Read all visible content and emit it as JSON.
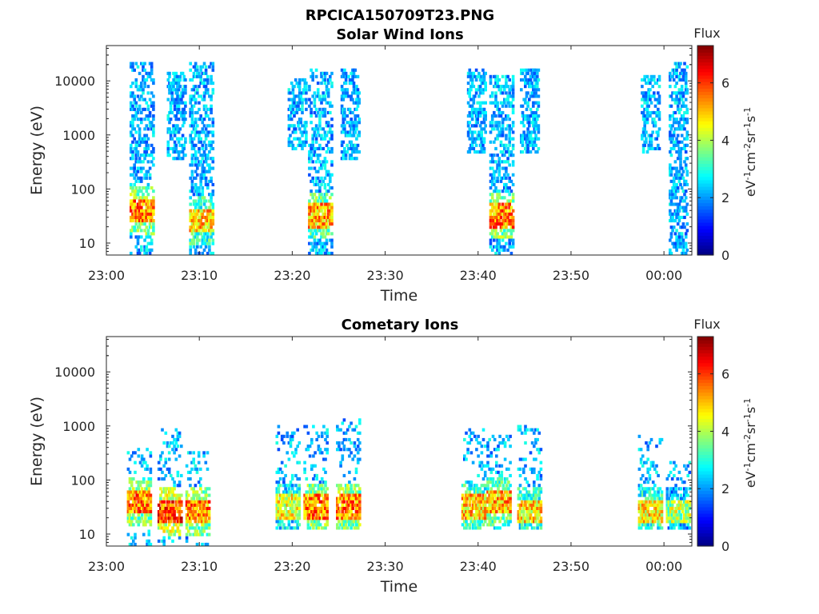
{
  "figure": {
    "title": "RPCICA150709T23.PNG"
  },
  "chart_data": [
    {
      "type": "heatmap",
      "title": "Solar Wind Ions",
      "xlabel": "Time",
      "ylabel": "Energy (eV)",
      "x_ticks": [
        "23:00",
        "23:10",
        "23:20",
        "23:30",
        "23:40",
        "23:50",
        "00:00"
      ],
      "xlim_minutes": [
        0,
        63
      ],
      "y_scale": "log",
      "ylim": [
        6,
        45000
      ],
      "y_ticks": [
        "10",
        "100",
        "1000",
        "10000"
      ],
      "y_tick_values": [
        10,
        100,
        1000,
        10000
      ],
      "colorbar": {
        "label": "Flux",
        "units": "eV-1cm-2sr-1s-1",
        "min": 0,
        "max": 7.3,
        "ticks": [
          "0",
          "2",
          "4",
          "6"
        ],
        "tick_values": [
          0,
          2,
          4,
          6
        ],
        "colormap": "jet"
      },
      "bursts": [
        {
          "t": 3.8,
          "emin": 6,
          "emax": 22000,
          "core_e": 35,
          "peak": 6.5
        },
        {
          "t": 7.5,
          "emin": 300,
          "emax": 14000,
          "core_e": 0,
          "peak": 2.0
        },
        {
          "t": 10.2,
          "emin": 6,
          "emax": 20000,
          "core_e": 25,
          "peak": 6.0
        },
        {
          "t": 20.5,
          "emin": 500,
          "emax": 11000,
          "core_e": 0,
          "peak": 2.0
        },
        {
          "t": 23.0,
          "emin": 6,
          "emax": 15000,
          "core_e": 30,
          "peak": 6.2
        },
        {
          "t": 26.2,
          "emin": 300,
          "emax": 15000,
          "core_e": 0,
          "peak": 2.0
        },
        {
          "t": 39.8,
          "emin": 400,
          "emax": 16000,
          "core_e": 0,
          "peak": 2.0
        },
        {
          "t": 42.5,
          "emin": 6,
          "emax": 12000,
          "core_e": 30,
          "peak": 6.5
        },
        {
          "t": 45.5,
          "emin": 400,
          "emax": 15000,
          "core_e": 0,
          "peak": 2.0
        },
        {
          "t": 58.5,
          "emin": 400,
          "emax": 12000,
          "core_e": 0,
          "peak": 2.0
        },
        {
          "t": 61.5,
          "emin": 6,
          "emax": 20000,
          "core_e": 0,
          "peak": 3.0
        }
      ]
    },
    {
      "type": "heatmap",
      "title": "Cometary Ions",
      "xlabel": "Time",
      "ylabel": "Energy (eV)",
      "x_ticks": [
        "23:00",
        "23:10",
        "23:20",
        "23:30",
        "23:40",
        "23:50",
        "00:00"
      ],
      "xlim_minutes": [
        0,
        63
      ],
      "y_scale": "log",
      "ylim": [
        6,
        45000
      ],
      "y_ticks": [
        "10",
        "100",
        "1000",
        "10000"
      ],
      "y_tick_values": [
        10,
        100,
        1000,
        10000
      ],
      "colorbar": {
        "label": "Flux",
        "units": "eV-1cm-2sr-1s-1",
        "min": 0,
        "max": 7.3,
        "ticks": [
          "0",
          "2",
          "4",
          "6"
        ],
        "tick_values": [
          0,
          2,
          4,
          6
        ],
        "colormap": "jet"
      },
      "bursts": [
        {
          "t": 3.5,
          "emin": 6,
          "emax": 350,
          "core_e": 35,
          "peak": 6.5
        },
        {
          "t": 6.8,
          "emin": 6,
          "emax": 800,
          "core_e": 25,
          "peak": 7.0
        },
        {
          "t": 9.8,
          "emin": 6,
          "emax": 300,
          "core_e": 25,
          "peak": 6.5
        },
        {
          "t": 19.5,
          "emin": 12,
          "emax": 1000,
          "core_e": 30,
          "peak": 5.5
        },
        {
          "t": 22.5,
          "emin": 12,
          "emax": 1000,
          "core_e": 30,
          "peak": 6.5
        },
        {
          "t": 26.0,
          "emin": 12,
          "emax": 1200,
          "core_e": 30,
          "peak": 6.5
        },
        {
          "t": 39.5,
          "emin": 12,
          "emax": 800,
          "core_e": 30,
          "peak": 6.0
        },
        {
          "t": 42.2,
          "emin": 12,
          "emax": 600,
          "core_e": 35,
          "peak": 6.2
        },
        {
          "t": 45.5,
          "emin": 12,
          "emax": 1000,
          "core_e": 25,
          "peak": 5.8
        },
        {
          "t": 58.5,
          "emin": 12,
          "emax": 600,
          "core_e": 25,
          "peak": 5.8
        },
        {
          "t": 61.5,
          "emin": 12,
          "emax": 200,
          "core_e": 25,
          "peak": 5.0
        }
      ]
    }
  ]
}
